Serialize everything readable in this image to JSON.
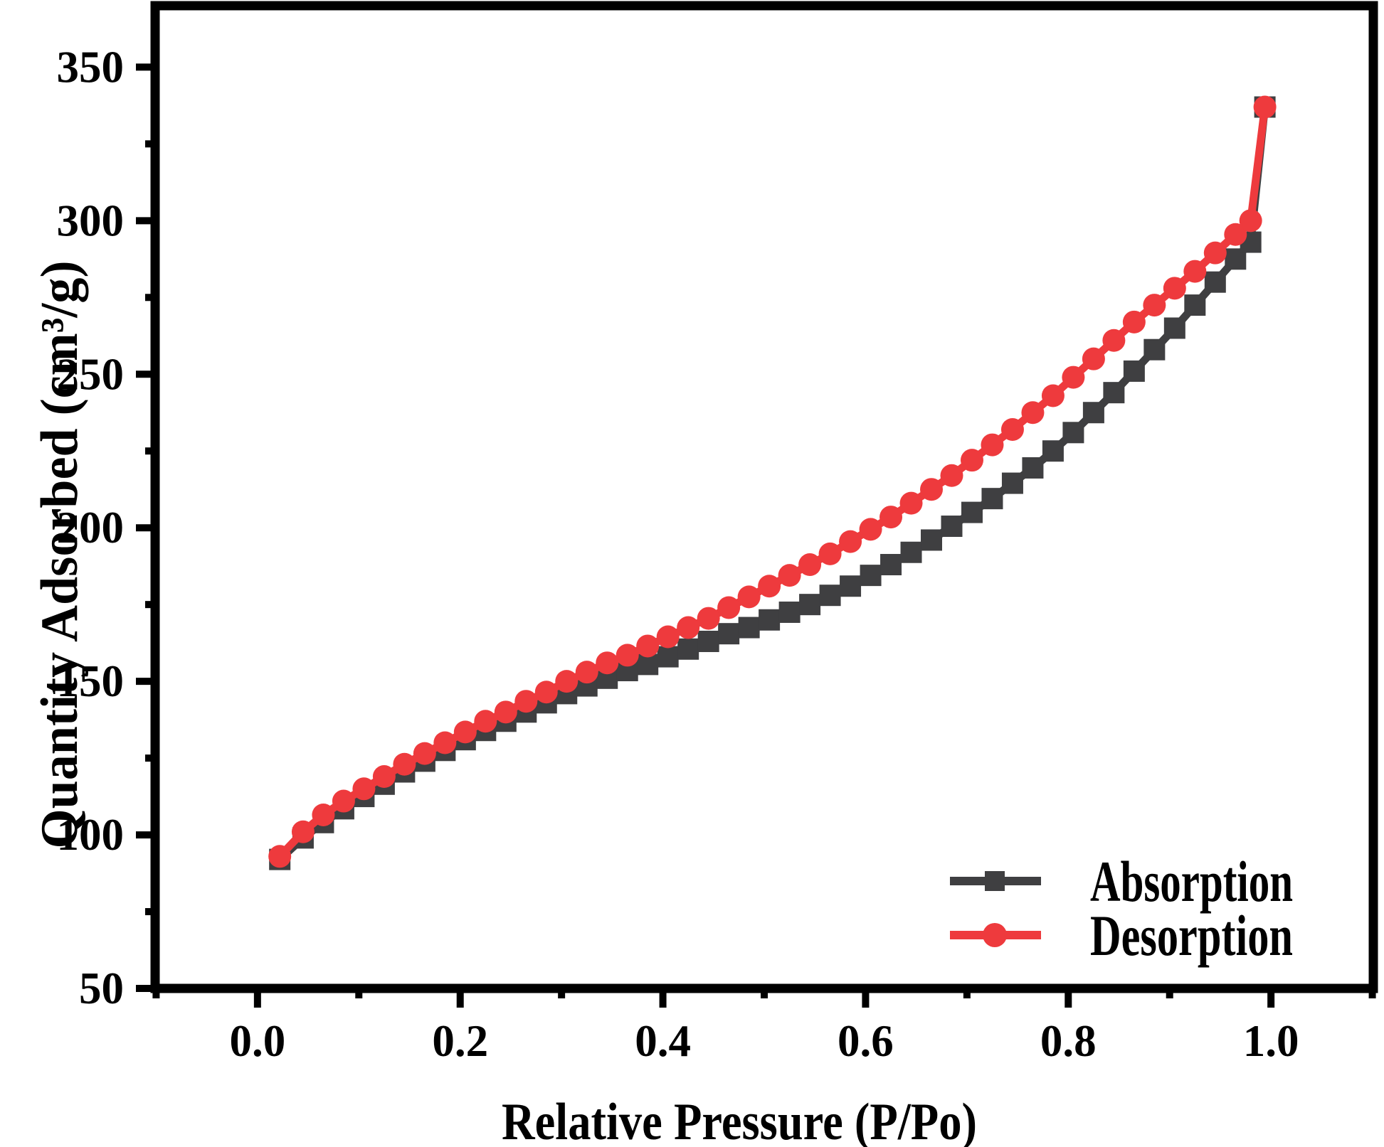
{
  "figure": {
    "type": "scientific-isotherm-figure",
    "background": "#ffffff",
    "frame_color": "#000000"
  },
  "chart_data": {
    "type": "line",
    "title": "",
    "xlabel": "Relative Pressure (P/Po)",
    "ylabel": "Quantity Adsorbed (cm³/g)",
    "xlim": [
      -0.101,
      1.101
    ],
    "ylim": [
      50,
      370
    ],
    "x_ticks": [
      0.0,
      0.2,
      0.4,
      0.6,
      0.8,
      1.0
    ],
    "x_tick_labels": [
      "0.0",
      "0.2",
      "0.4",
      "0.6",
      "0.8",
      "1.0"
    ],
    "x_minor_step": 0.1,
    "y_ticks": [
      50,
      100,
      150,
      200,
      250,
      300,
      350
    ],
    "y_tick_labels": [
      "50",
      "100",
      "150",
      "200",
      "250",
      "300",
      "350"
    ],
    "y_minor_step": 25,
    "grid": false,
    "legend_position": "lower-right",
    "x": [
      0.022,
      0.045,
      0.065,
      0.085,
      0.105,
      0.125,
      0.145,
      0.165,
      0.185,
      0.205,
      0.225,
      0.245,
      0.265,
      0.285,
      0.305,
      0.325,
      0.345,
      0.365,
      0.385,
      0.405,
      0.425,
      0.445,
      0.465,
      0.485,
      0.505,
      0.525,
      0.545,
      0.565,
      0.585,
      0.605,
      0.625,
      0.645,
      0.665,
      0.685,
      0.705,
      0.725,
      0.745,
      0.765,
      0.785,
      0.805,
      0.825,
      0.845,
      0.865,
      0.885,
      0.905,
      0.925,
      0.945,
      0.965,
      0.98,
      0.994
    ],
    "series": [
      {
        "name": "Absorption",
        "color": "#3f3f41",
        "marker": "square",
        "values": [
          92,
          99,
          104,
          108.5,
          112.5,
          116.5,
          120.5,
          124,
          127.5,
          131,
          134,
          137,
          140,
          143,
          146,
          148.5,
          151,
          153.5,
          155.5,
          158,
          160.5,
          163,
          165.5,
          167.5,
          170,
          172.5,
          175,
          178,
          181,
          184.5,
          188,
          192,
          196,
          200.5,
          205,
          209.5,
          214.5,
          219.5,
          225,
          231,
          237.5,
          244,
          251,
          258,
          265,
          272.5,
          280,
          287.5,
          293,
          337
        ]
      },
      {
        "name": "Desorption",
        "color": "#ee3a3d",
        "marker": "circle",
        "values": [
          93,
          101,
          106.5,
          111,
          115,
          119,
          123,
          126.5,
          130,
          133.5,
          137,
          140,
          143.5,
          146.5,
          150,
          153,
          156,
          158.5,
          161.5,
          164.5,
          167.5,
          170.5,
          174,
          177.5,
          181,
          184.5,
          188,
          191.5,
          195.5,
          199.5,
          203.5,
          208,
          212.5,
          217,
          222,
          227,
          232,
          237.5,
          243,
          249,
          255,
          261,
          267,
          272.5,
          278,
          283.5,
          289.5,
          295.5,
          300,
          337
        ]
      }
    ]
  },
  "legend": {
    "items": [
      {
        "label": "Absorption",
        "color": "#3f3f41",
        "marker": "square"
      },
      {
        "label": "Desorption",
        "color": "#ee3a3d",
        "marker": "circle"
      }
    ]
  }
}
